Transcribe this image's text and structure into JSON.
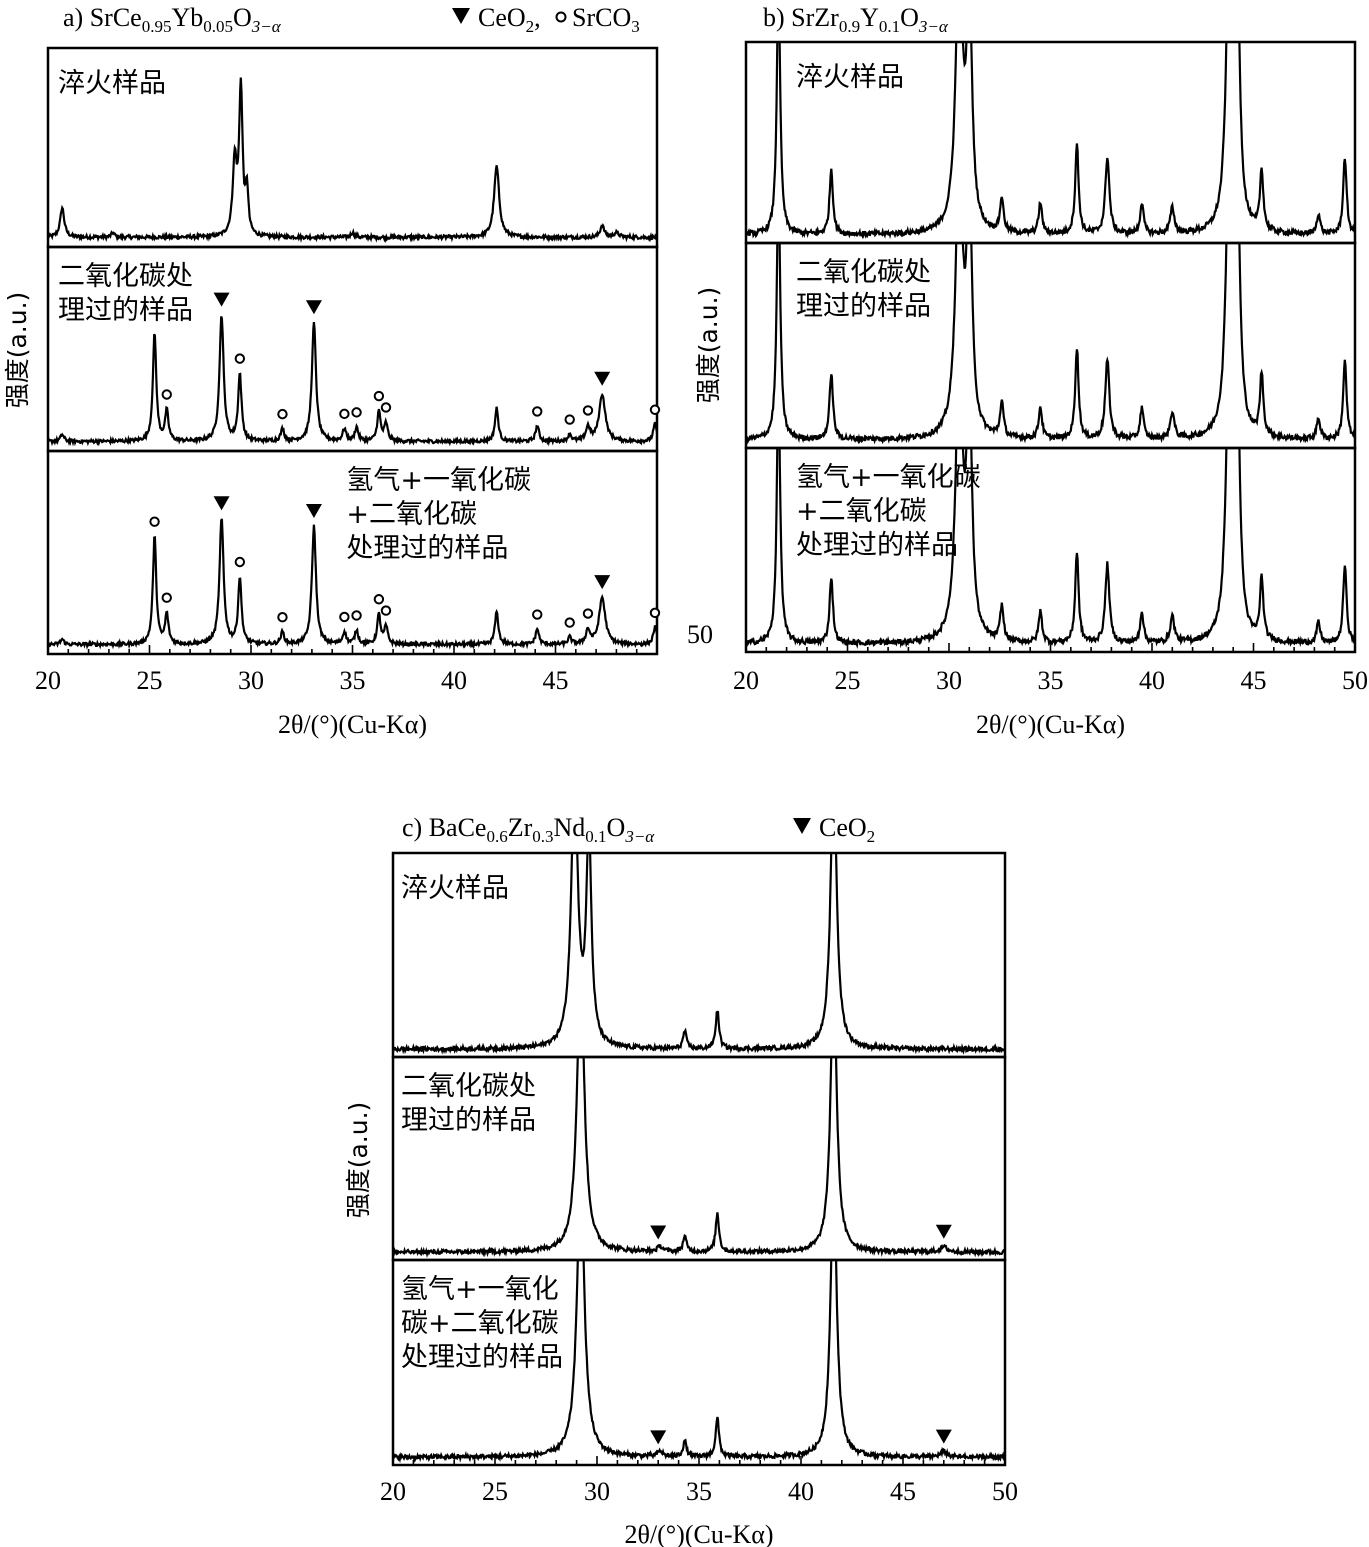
{
  "chart_data": [
    {
      "id": "a",
      "type": "line",
      "title": "a) SrCe0.95Yb0.05O3−α",
      "title_parts": {
        "prefix": "a) SrCe",
        "s1": "0.95",
        "m1": "Yb",
        "s2": "0.05",
        "m2": "O",
        "s3": "3−α"
      },
      "legend": [
        {
          "marker": "triangle-down",
          "label": "CeO2",
          "label_main": "CeO",
          "label_sub": "2",
          "sep": ", "
        },
        {
          "marker": "circle",
          "label": "SrCO3",
          "label_main": "SrCO",
          "label_sub": "3"
        }
      ],
      "xlabel": "2θ/(°)(Cu-Kα)",
      "ylabel": "强度(a.u.)",
      "xlim": [
        20,
        50
      ],
      "xticks": [
        20,
        25,
        30,
        35,
        40,
        45
      ],
      "extra_tick_label": "50",
      "grid": false,
      "panels": [
        {
          "label_lines": [
            "淬火样品"
          ],
          "label_pos": "top-left",
          "baseline": 0.1,
          "noise": 0.012,
          "peaks": [
            [
              20.7,
              0.2,
              0.12
            ],
            [
              23.2,
              0.03,
              0.1
            ],
            [
              29.2,
              0.5,
              0.12
            ],
            [
              29.5,
              1.0,
              0.1
            ],
            [
              29.8,
              0.3,
              0.08
            ],
            [
              35.0,
              0.03,
              0.1
            ],
            [
              42.1,
              0.48,
              0.15
            ],
            [
              47.3,
              0.08,
              0.12
            ],
            [
              48.0,
              0.03,
              0.15
            ]
          ],
          "ymax": 1.15,
          "clip": false,
          "markers": []
        },
        {
          "label_lines": [
            "二氧化碳处",
            "理过的样品"
          ],
          "label_pos": "top-left",
          "baseline": 0.08,
          "noise": 0.01,
          "peaks": [
            [
              20.7,
              0.04,
              0.1
            ],
            [
              25.25,
              0.62,
              0.1
            ],
            [
              25.85,
              0.17,
              0.1
            ],
            [
              28.55,
              0.72,
              0.12
            ],
            [
              29.45,
              0.38,
              0.1
            ],
            [
              31.55,
              0.07,
              0.1
            ],
            [
              33.1,
              0.68,
              0.12
            ],
            [
              34.6,
              0.07,
              0.1
            ],
            [
              35.2,
              0.08,
              0.1
            ],
            [
              36.3,
              0.17,
              0.1
            ],
            [
              36.65,
              0.1,
              0.1
            ],
            [
              42.1,
              0.19,
              0.1
            ],
            [
              44.1,
              0.09,
              0.1
            ],
            [
              45.7,
              0.04,
              0.1
            ],
            [
              46.6,
              0.08,
              0.12
            ],
            [
              47.3,
              0.27,
              0.18
            ],
            [
              49.9,
              0.1,
              0.1
            ]
          ],
          "ymax": 1.0,
          "clip": false,
          "markers": [
            {
              "x": 28.55,
              "type": "triangle-down"
            },
            {
              "x": 33.1,
              "type": "triangle-down"
            },
            {
              "x": 47.3,
              "type": "triangle-down"
            },
            {
              "x": 25.85,
              "type": "circle"
            },
            {
              "x": 29.45,
              "type": "circle"
            },
            {
              "x": 31.55,
              "type": "circle"
            },
            {
              "x": 34.6,
              "type": "circle"
            },
            {
              "x": 35.2,
              "type": "circle"
            },
            {
              "x": 36.3,
              "type": "circle"
            },
            {
              "x": 36.65,
              "type": "circle"
            },
            {
              "x": 44.1,
              "type": "circle"
            },
            {
              "x": 45.7,
              "type": "circle"
            },
            {
              "x": 46.6,
              "type": "circle"
            },
            {
              "x": 49.9,
              "type": "circle"
            }
          ]
        },
        {
          "label_lines": [
            "氢气+一氧化碳",
            "+二氧化碳",
            "处理过的样品"
          ],
          "label_pos": "top-right",
          "baseline": 0.08,
          "noise": 0.01,
          "peaks": [
            [
              20.7,
              0.03,
              0.1
            ],
            [
              25.25,
              0.62,
              0.1
            ],
            [
              25.85,
              0.17,
              0.1
            ],
            [
              28.55,
              0.72,
              0.12
            ],
            [
              29.45,
              0.38,
              0.1
            ],
            [
              31.55,
              0.07,
              0.1
            ],
            [
              33.1,
              0.68,
              0.12
            ],
            [
              34.6,
              0.07,
              0.1
            ],
            [
              35.2,
              0.08,
              0.1
            ],
            [
              36.3,
              0.17,
              0.1
            ],
            [
              36.65,
              0.1,
              0.1
            ],
            [
              42.1,
              0.19,
              0.1
            ],
            [
              44.1,
              0.09,
              0.1
            ],
            [
              45.7,
              0.04,
              0.1
            ],
            [
              46.6,
              0.08,
              0.12
            ],
            [
              47.3,
              0.27,
              0.18
            ],
            [
              49.9,
              0.1,
              0.1
            ]
          ],
          "ymax": 1.0,
          "clip": false,
          "markers": [
            {
              "x": 28.55,
              "type": "triangle-down"
            },
            {
              "x": 33.1,
              "type": "triangle-down"
            },
            {
              "x": 47.3,
              "type": "triangle-down"
            },
            {
              "x": 25.25,
              "type": "circle"
            },
            {
              "x": 25.85,
              "type": "circle"
            },
            {
              "x": 29.45,
              "type": "circle"
            },
            {
              "x": 31.55,
              "type": "circle"
            },
            {
              "x": 34.6,
              "type": "circle"
            },
            {
              "x": 35.2,
              "type": "circle"
            },
            {
              "x": 36.3,
              "type": "circle"
            },
            {
              "x": 36.65,
              "type": "circle"
            },
            {
              "x": 44.1,
              "type": "circle"
            },
            {
              "x": 45.7,
              "type": "circle"
            },
            {
              "x": 46.6,
              "type": "circle"
            },
            {
              "x": 49.9,
              "type": "circle"
            }
          ]
        }
      ]
    },
    {
      "id": "b",
      "type": "line",
      "title": "b) SrZr0.9Y0.1O3−α",
      "title_parts": {
        "prefix": "b) SrZr",
        "s1": "0.9",
        "m1": "Y",
        "s2": "0.1",
        "m2": "O",
        "s3": "3−α"
      },
      "legend": [],
      "xlabel": "2θ/(°)(Cu-Kα)",
      "ylabel": "强度(a.u.)",
      "xlim": [
        20,
        50
      ],
      "xticks": [
        20,
        25,
        30,
        35,
        40,
        45,
        50
      ],
      "grid": false,
      "panels": [
        {
          "label_lines": [
            "淬火样品"
          ],
          "label_pos": "top-center",
          "baseline": 0.05,
          "noise": 0.015,
          "peaks": [
            [
              21.6,
              1.5,
              0.1
            ],
            [
              24.2,
              0.38,
              0.1
            ],
            [
              30.5,
              1.6,
              0.2
            ],
            [
              31.0,
              1.4,
              0.15
            ],
            [
              32.6,
              0.2,
              0.1
            ],
            [
              34.5,
              0.18,
              0.1
            ],
            [
              36.3,
              0.52,
              0.1
            ],
            [
              37.8,
              0.45,
              0.12
            ],
            [
              39.5,
              0.18,
              0.1
            ],
            [
              41.0,
              0.15,
              0.12
            ],
            [
              43.8,
              1.6,
              0.18
            ],
            [
              44.2,
              1.4,
              0.15
            ],
            [
              45.4,
              0.35,
              0.1
            ],
            [
              48.2,
              0.12,
              0.1
            ],
            [
              49.5,
              0.45,
              0.1
            ]
          ],
          "ymax": 1.0,
          "clip": true,
          "markers": []
        },
        {
          "label_lines": [
            "二氧化碳处",
            "理过的样品"
          ],
          "label_pos": "top-center",
          "baseline": 0.05,
          "noise": 0.015,
          "peaks": [
            [
              21.6,
              1.5,
              0.1
            ],
            [
              24.2,
              0.38,
              0.1
            ],
            [
              30.5,
              1.6,
              0.2
            ],
            [
              31.0,
              1.4,
              0.15
            ],
            [
              32.6,
              0.2,
              0.1
            ],
            [
              34.5,
              0.18,
              0.1
            ],
            [
              36.3,
              0.52,
              0.1
            ],
            [
              37.8,
              0.45,
              0.12
            ],
            [
              39.5,
              0.18,
              0.1
            ],
            [
              41.0,
              0.15,
              0.12
            ],
            [
              43.8,
              1.6,
              0.18
            ],
            [
              44.2,
              1.4,
              0.15
            ],
            [
              45.4,
              0.35,
              0.1
            ],
            [
              48.2,
              0.12,
              0.1
            ],
            [
              49.5,
              0.45,
              0.1
            ]
          ],
          "ymax": 1.0,
          "clip": true,
          "markers": []
        },
        {
          "label_lines": [
            "氢气+一氧化碳",
            "+二氧化碳",
            "处理过的样品"
          ],
          "label_pos": "top-center",
          "baseline": 0.05,
          "noise": 0.015,
          "peaks": [
            [
              21.6,
              1.5,
              0.1
            ],
            [
              24.2,
              0.38,
              0.1
            ],
            [
              30.5,
              1.6,
              0.2
            ],
            [
              31.0,
              1.4,
              0.15
            ],
            [
              32.6,
              0.2,
              0.1
            ],
            [
              34.5,
              0.18,
              0.1
            ],
            [
              36.3,
              0.52,
              0.1
            ],
            [
              37.8,
              0.45,
              0.12
            ],
            [
              39.5,
              0.18,
              0.1
            ],
            [
              41.0,
              0.15,
              0.12
            ],
            [
              43.8,
              1.6,
              0.18
            ],
            [
              44.2,
              1.4,
              0.15
            ],
            [
              45.4,
              0.35,
              0.1
            ],
            [
              48.2,
              0.12,
              0.1
            ],
            [
              49.5,
              0.45,
              0.1
            ]
          ],
          "ymax": 1.0,
          "clip": true,
          "markers": []
        }
      ]
    },
    {
      "id": "c",
      "type": "line",
      "title": "c) BaCe0.6Zr0.3Nd0.1O3−α",
      "title_parts": {
        "prefix": "c) BaCe",
        "s1": "0.6",
        "m1": "Zr",
        "s2": "0.3",
        "m2": "Nd",
        "s3": "0.1",
        "m3": "O",
        "s4": "3−α"
      },
      "legend": [
        {
          "marker": "triangle-down",
          "label": "CeO2",
          "label_main": "CeO",
          "label_sub": "2"
        }
      ],
      "xlabel": "2θ/(°)(Cu-Kα)",
      "ylabel": "强度(a.u.)",
      "xlim": [
        20,
        50
      ],
      "xticks": [
        20,
        25,
        30,
        35,
        40,
        45,
        50
      ],
      "grid": false,
      "panels": [
        {
          "label_lines": [
            "淬火样品"
          ],
          "label_pos": "top-left",
          "baseline": 0.04,
          "noise": 0.012,
          "peaks": [
            [
              28.9,
              1.5,
              0.2
            ],
            [
              29.6,
              1.2,
              0.15
            ],
            [
              34.3,
              0.1,
              0.1
            ],
            [
              35.9,
              0.22,
              0.1
            ],
            [
              41.6,
              1.6,
              0.18
            ]
          ],
          "ymax": 1.0,
          "clip": true,
          "markers": []
        },
        {
          "label_lines": [
            "二氧化碳处",
            "理过的样品"
          ],
          "label_pos": "top-left",
          "baseline": 0.04,
          "noise": 0.012,
          "peaks": [
            [
              29.2,
              1.6,
              0.22
            ],
            [
              33.1,
              0.03,
              0.15
            ],
            [
              34.3,
              0.09,
              0.1
            ],
            [
              35.9,
              0.22,
              0.1
            ],
            [
              41.6,
              1.6,
              0.18
            ],
            [
              47.0,
              0.03,
              0.2
            ]
          ],
          "ymax": 1.0,
          "clip": true,
          "markers": [
            {
              "x": 33.0,
              "type": "triangle-down"
            },
            {
              "x": 47.0,
              "type": "triangle-down"
            }
          ]
        },
        {
          "label_lines": [
            "氢气+一氧化",
            "碳+二氧化碳",
            "处理过的样品"
          ],
          "label_pos": "top-left",
          "baseline": 0.04,
          "noise": 0.012,
          "peaks": [
            [
              29.2,
              1.6,
              0.22
            ],
            [
              33.1,
              0.03,
              0.15
            ],
            [
              34.3,
              0.09,
              0.1
            ],
            [
              35.9,
              0.22,
              0.1
            ],
            [
              41.6,
              1.6,
              0.18
            ],
            [
              47.0,
              0.03,
              0.2
            ]
          ],
          "ymax": 1.0,
          "clip": true,
          "markers": [
            {
              "x": 33.0,
              "type": "triangle-down"
            },
            {
              "x": 47.0,
              "type": "triangle-down"
            }
          ]
        }
      ]
    }
  ]
}
